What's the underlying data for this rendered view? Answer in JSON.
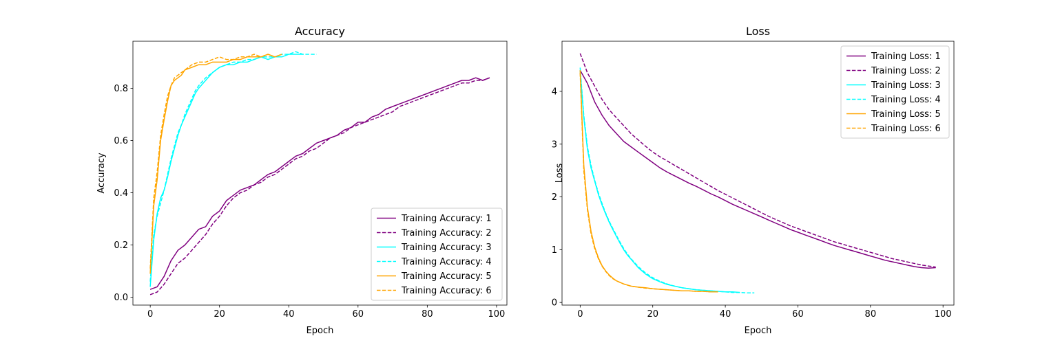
{
  "chart_data": [
    {
      "type": "line",
      "title": "Accuracy",
      "xlabel": "Epoch",
      "ylabel": "Accuracy",
      "xlim": [
        -5,
        103
      ],
      "ylim": [
        -0.03,
        0.98
      ],
      "xticks": [
        0,
        20,
        40,
        60,
        80,
        100
      ],
      "xtick_labels": [
        "0",
        "20",
        "40",
        "60",
        "80",
        "100"
      ],
      "yticks": [
        0.0,
        0.2,
        0.4,
        0.6,
        0.8
      ],
      "ytick_labels": [
        "0.0",
        "0.2",
        "0.4",
        "0.6",
        "0.8"
      ],
      "legend_position": "lower-right",
      "series": [
        {
          "name": "Training Accuracy: 1",
          "color": "#800080",
          "dash": "solid",
          "x": [
            0,
            2,
            4,
            6,
            8,
            10,
            12,
            14,
            16,
            18,
            20,
            22,
            24,
            26,
            28,
            30,
            32,
            34,
            36,
            38,
            40,
            42,
            44,
            46,
            48,
            50,
            52,
            54,
            56,
            58,
            60,
            62,
            64,
            66,
            68,
            70,
            72,
            74,
            76,
            78,
            80,
            82,
            84,
            86,
            88,
            90,
            92,
            94,
            96,
            98
          ],
          "y": [
            0.03,
            0.04,
            0.08,
            0.14,
            0.18,
            0.2,
            0.23,
            0.26,
            0.27,
            0.31,
            0.33,
            0.37,
            0.39,
            0.41,
            0.42,
            0.43,
            0.45,
            0.47,
            0.48,
            0.5,
            0.52,
            0.54,
            0.55,
            0.57,
            0.59,
            0.6,
            0.61,
            0.62,
            0.64,
            0.65,
            0.67,
            0.67,
            0.69,
            0.7,
            0.72,
            0.73,
            0.74,
            0.75,
            0.76,
            0.77,
            0.78,
            0.79,
            0.8,
            0.81,
            0.82,
            0.83,
            0.83,
            0.84,
            0.83,
            0.84
          ]
        },
        {
          "name": "Training Accuracy: 2",
          "color": "#800080",
          "dash": "dashed",
          "x": [
            0,
            2,
            4,
            6,
            8,
            10,
            12,
            14,
            16,
            18,
            20,
            22,
            24,
            26,
            28,
            30,
            32,
            34,
            36,
            38,
            40,
            42,
            44,
            46,
            48,
            50,
            52,
            54,
            56,
            58,
            60,
            62,
            64,
            66,
            68,
            70,
            72,
            74,
            76,
            78,
            80,
            82,
            84,
            86,
            88,
            90,
            92,
            94,
            96,
            98
          ],
          "y": [
            0.01,
            0.02,
            0.05,
            0.09,
            0.13,
            0.15,
            0.18,
            0.21,
            0.24,
            0.28,
            0.31,
            0.35,
            0.38,
            0.4,
            0.41,
            0.43,
            0.44,
            0.46,
            0.47,
            0.49,
            0.51,
            0.53,
            0.54,
            0.56,
            0.57,
            0.59,
            0.61,
            0.62,
            0.63,
            0.65,
            0.66,
            0.67,
            0.68,
            0.69,
            0.7,
            0.71,
            0.73,
            0.74,
            0.75,
            0.76,
            0.77,
            0.78,
            0.79,
            0.8,
            0.81,
            0.82,
            0.82,
            0.83,
            0.83,
            0.84
          ]
        },
        {
          "name": "Training Accuracy: 3",
          "color": "#00ffff",
          "dash": "solid",
          "x": [
            0,
            1,
            2,
            3,
            4,
            5,
            6,
            7,
            8,
            9,
            10,
            11,
            12,
            13,
            14,
            16,
            18,
            20,
            22,
            24,
            26,
            28,
            30,
            32,
            34,
            36,
            38,
            40,
            42,
            44
          ],
          "y": [
            0.04,
            0.22,
            0.32,
            0.38,
            0.41,
            0.46,
            0.52,
            0.57,
            0.62,
            0.66,
            0.69,
            0.72,
            0.75,
            0.78,
            0.8,
            0.83,
            0.86,
            0.88,
            0.89,
            0.89,
            0.9,
            0.9,
            0.91,
            0.92,
            0.91,
            0.92,
            0.92,
            0.93,
            0.93,
            0.93
          ]
        },
        {
          "name": "Training Accuracy: 4",
          "color": "#00ffff",
          "dash": "dashed",
          "x": [
            0,
            1,
            2,
            3,
            4,
            5,
            6,
            7,
            8,
            9,
            10,
            11,
            12,
            13,
            14,
            16,
            18,
            20,
            22,
            24,
            26,
            28,
            30,
            32,
            34,
            36,
            38,
            40,
            42,
            44,
            46,
            48
          ],
          "y": [
            0.06,
            0.24,
            0.31,
            0.36,
            0.41,
            0.47,
            0.53,
            0.58,
            0.63,
            0.66,
            0.7,
            0.73,
            0.76,
            0.79,
            0.81,
            0.84,
            0.86,
            0.88,
            0.89,
            0.9,
            0.9,
            0.91,
            0.91,
            0.92,
            0.92,
            0.92,
            0.93,
            0.93,
            0.94,
            0.93,
            0.93,
            0.93
          ]
        },
        {
          "name": "Training Accuracy: 5",
          "color": "#ffa500",
          "dash": "solid",
          "x": [
            0,
            1,
            2,
            3,
            4,
            5,
            6,
            7,
            8,
            9,
            10,
            12,
            14,
            16,
            18,
            20,
            22,
            24,
            26,
            28,
            30,
            32,
            34,
            36,
            38
          ],
          "y": [
            0.09,
            0.35,
            0.45,
            0.6,
            0.68,
            0.75,
            0.81,
            0.83,
            0.84,
            0.85,
            0.87,
            0.88,
            0.89,
            0.89,
            0.9,
            0.9,
            0.9,
            0.91,
            0.91,
            0.92,
            0.92,
            0.92,
            0.93,
            0.92,
            0.93
          ]
        },
        {
          "name": "Training Accuracy: 6",
          "color": "#ffa500",
          "dash": "dashed",
          "x": [
            0,
            1,
            2,
            3,
            4,
            5,
            6,
            7,
            8,
            9,
            10,
            12,
            14,
            16,
            18,
            20,
            22,
            24,
            26,
            28,
            30,
            32,
            34,
            36
          ],
          "y": [
            0.11,
            0.38,
            0.48,
            0.62,
            0.7,
            0.77,
            0.81,
            0.84,
            0.85,
            0.86,
            0.87,
            0.89,
            0.9,
            0.9,
            0.91,
            0.92,
            0.91,
            0.91,
            0.92,
            0.92,
            0.93,
            0.92,
            0.93,
            0.92
          ]
        }
      ]
    },
    {
      "type": "line",
      "title": "Loss",
      "xlabel": "Epoch",
      "ylabel": "Loss",
      "xlim": [
        -5,
        103
      ],
      "ylim": [
        -0.05,
        4.95
      ],
      "xticks": [
        0,
        20,
        40,
        60,
        80,
        100
      ],
      "xtick_labels": [
        "0",
        "20",
        "40",
        "60",
        "80",
        "100"
      ],
      "yticks": [
        0,
        1,
        2,
        3,
        4
      ],
      "ytick_labels": [
        "0",
        "1",
        "2",
        "3",
        "4"
      ],
      "legend_position": "upper-right",
      "series": [
        {
          "name": "Training Loss: 1",
          "color": "#800080",
          "dash": "solid",
          "x": [
            0,
            2,
            4,
            6,
            8,
            10,
            12,
            14,
            16,
            18,
            20,
            22,
            24,
            26,
            28,
            30,
            32,
            34,
            36,
            38,
            40,
            42,
            44,
            46,
            48,
            50,
            52,
            54,
            56,
            58,
            60,
            62,
            64,
            66,
            68,
            70,
            72,
            74,
            76,
            78,
            80,
            82,
            84,
            86,
            88,
            90,
            92,
            94,
            96,
            98
          ],
          "y": [
            4.4,
            4.15,
            3.8,
            3.55,
            3.35,
            3.2,
            3.05,
            2.95,
            2.85,
            2.75,
            2.65,
            2.55,
            2.47,
            2.4,
            2.33,
            2.26,
            2.2,
            2.13,
            2.06,
            2.0,
            1.93,
            1.86,
            1.8,
            1.74,
            1.68,
            1.62,
            1.56,
            1.5,
            1.44,
            1.38,
            1.33,
            1.28,
            1.23,
            1.18,
            1.13,
            1.08,
            1.04,
            1.0,
            0.96,
            0.92,
            0.88,
            0.84,
            0.8,
            0.77,
            0.74,
            0.71,
            0.68,
            0.66,
            0.65,
            0.66
          ]
        },
        {
          "name": "Training Loss: 2",
          "color": "#800080",
          "dash": "dashed",
          "x": [
            0,
            2,
            4,
            6,
            8,
            10,
            12,
            14,
            16,
            18,
            20,
            22,
            24,
            26,
            28,
            30,
            32,
            34,
            36,
            38,
            40,
            42,
            44,
            46,
            48,
            50,
            52,
            54,
            56,
            58,
            60,
            62,
            64,
            66,
            68,
            70,
            72,
            74,
            76,
            78,
            80,
            82,
            84,
            86,
            88,
            90,
            92,
            94,
            96,
            98
          ],
          "y": [
            4.72,
            4.35,
            4.1,
            3.85,
            3.65,
            3.5,
            3.35,
            3.2,
            3.08,
            2.96,
            2.85,
            2.76,
            2.68,
            2.6,
            2.52,
            2.44,
            2.36,
            2.28,
            2.2,
            2.12,
            2.05,
            1.98,
            1.91,
            1.84,
            1.77,
            1.7,
            1.63,
            1.57,
            1.51,
            1.45,
            1.4,
            1.35,
            1.3,
            1.25,
            1.2,
            1.15,
            1.11,
            1.07,
            1.03,
            0.99,
            0.95,
            0.91,
            0.87,
            0.83,
            0.8,
            0.77,
            0.74,
            0.71,
            0.69,
            0.67
          ]
        },
        {
          "name": "Training Loss: 3",
          "color": "#00ffff",
          "dash": "solid",
          "x": [
            0,
            1,
            2,
            3,
            4,
            5,
            6,
            7,
            8,
            9,
            10,
            11,
            12,
            13,
            14,
            16,
            18,
            20,
            22,
            24,
            26,
            28,
            30,
            32,
            34,
            36,
            38,
            40,
            42,
            44
          ],
          "y": [
            4.4,
            3.5,
            2.9,
            2.55,
            2.3,
            2.05,
            1.85,
            1.68,
            1.52,
            1.38,
            1.25,
            1.12,
            1.0,
            0.9,
            0.82,
            0.66,
            0.54,
            0.45,
            0.39,
            0.34,
            0.31,
            0.28,
            0.26,
            0.24,
            0.23,
            0.22,
            0.21,
            0.2,
            0.2,
            0.19
          ]
        },
        {
          "name": "Training Loss: 4",
          "color": "#00ffff",
          "dash": "dashed",
          "x": [
            0,
            1,
            2,
            3,
            4,
            5,
            6,
            7,
            8,
            9,
            10,
            11,
            12,
            13,
            14,
            16,
            18,
            20,
            22,
            24,
            26,
            28,
            30,
            32,
            34,
            36,
            38,
            40,
            42,
            44,
            46,
            48
          ],
          "y": [
            4.45,
            3.55,
            2.95,
            2.6,
            2.32,
            2.08,
            1.88,
            1.7,
            1.54,
            1.4,
            1.27,
            1.14,
            1.02,
            0.92,
            0.83,
            0.68,
            0.56,
            0.47,
            0.4,
            0.35,
            0.31,
            0.28,
            0.26,
            0.24,
            0.23,
            0.22,
            0.21,
            0.2,
            0.19,
            0.19,
            0.18,
            0.18
          ]
        },
        {
          "name": "Training Loss: 5",
          "color": "#ffa500",
          "dash": "solid",
          "x": [
            0,
            1,
            2,
            3,
            4,
            5,
            6,
            7,
            8,
            9,
            10,
            12,
            14,
            16,
            18,
            20,
            22,
            24,
            26,
            28,
            30,
            32,
            34,
            36,
            38
          ],
          "y": [
            4.4,
            2.6,
            1.8,
            1.35,
            1.05,
            0.85,
            0.7,
            0.6,
            0.52,
            0.46,
            0.41,
            0.35,
            0.31,
            0.29,
            0.28,
            0.26,
            0.25,
            0.24,
            0.23,
            0.22,
            0.22,
            0.21,
            0.21,
            0.2,
            0.2
          ]
        },
        {
          "name": "Training Loss: 6",
          "color": "#ffa500",
          "dash": "dashed",
          "x": [
            0,
            1,
            2,
            3,
            4,
            5,
            6,
            7,
            8,
            9,
            10,
            12,
            14,
            16,
            18,
            20,
            22,
            24,
            26,
            28,
            30,
            32,
            34,
            36
          ],
          "y": [
            4.35,
            2.5,
            1.75,
            1.3,
            1.02,
            0.83,
            0.69,
            0.59,
            0.51,
            0.45,
            0.41,
            0.35,
            0.31,
            0.29,
            0.27,
            0.26,
            0.25,
            0.24,
            0.23,
            0.22,
            0.22,
            0.21,
            0.21,
            0.2
          ]
        }
      ]
    }
  ]
}
